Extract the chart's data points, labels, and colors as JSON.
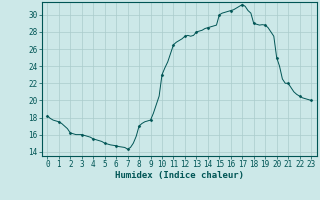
{
  "xlabel": "Humidex (Indice chaleur)",
  "ylabel": "",
  "background_color": "#cce8e8",
  "plot_bg_color": "#cce8e8",
  "grid_color": "#aacccc",
  "line_color": "#005555",
  "marker_color": "#005555",
  "xlim": [
    -0.5,
    23.5
  ],
  "ylim": [
    13.5,
    31.5
  ],
  "yticks": [
    14,
    16,
    18,
    20,
    22,
    24,
    26,
    28,
    30
  ],
  "xticks": [
    0,
    1,
    2,
    3,
    4,
    5,
    6,
    7,
    8,
    9,
    10,
    11,
    12,
    13,
    14,
    15,
    16,
    17,
    18,
    19,
    20,
    21,
    22,
    23
  ],
  "x": [
    0,
    0.25,
    0.5,
    0.75,
    1,
    1.25,
    1.5,
    1.75,
    2,
    2.25,
    2.5,
    2.75,
    3,
    3.25,
    3.5,
    3.75,
    4,
    4.25,
    4.5,
    4.75,
    5,
    5.25,
    5.5,
    5.75,
    6,
    6.25,
    6.5,
    6.75,
    7,
    7.25,
    7.5,
    7.75,
    8,
    8.25,
    8.5,
    8.75,
    9,
    9.25,
    9.5,
    9.75,
    10,
    10.25,
    10.5,
    10.75,
    11,
    11.25,
    11.5,
    11.75,
    12,
    12.25,
    12.5,
    12.75,
    13,
    13.25,
    13.5,
    13.75,
    14,
    14.25,
    14.5,
    14.75,
    15,
    15.25,
    15.5,
    15.75,
    16,
    16.25,
    16.5,
    16.75,
    17,
    17.25,
    17.5,
    17.75,
    18,
    18.25,
    18.5,
    18.75,
    19,
    19.25,
    19.5,
    19.75,
    20,
    20.25,
    20.5,
    20.75,
    21,
    21.25,
    21.5,
    21.75,
    22,
    22.25,
    22.5,
    22.75,
    23
  ],
  "y": [
    18.2,
    17.9,
    17.7,
    17.6,
    17.5,
    17.3,
    17.0,
    16.7,
    16.2,
    16.1,
    16.0,
    16.0,
    16.0,
    15.9,
    15.8,
    15.7,
    15.5,
    15.4,
    15.3,
    15.2,
    15.0,
    14.9,
    14.8,
    14.75,
    14.7,
    14.6,
    14.55,
    14.5,
    14.3,
    14.5,
    15.0,
    15.8,
    17.0,
    17.3,
    17.5,
    17.6,
    17.7,
    18.5,
    19.5,
    20.5,
    23.0,
    23.8,
    24.5,
    25.5,
    26.5,
    26.8,
    27.0,
    27.2,
    27.5,
    27.6,
    27.5,
    27.6,
    28.0,
    28.1,
    28.2,
    28.4,
    28.5,
    28.6,
    28.7,
    28.8,
    30.0,
    30.2,
    30.3,
    30.4,
    30.5,
    30.6,
    30.8,
    31.0,
    31.2,
    31.0,
    30.5,
    30.2,
    29.0,
    28.9,
    28.8,
    28.85,
    28.8,
    28.5,
    28.0,
    27.5,
    25.0,
    24.0,
    22.5,
    22.0,
    22.0,
    21.5,
    21.0,
    20.7,
    20.5,
    20.3,
    20.2,
    20.1,
    20.0
  ],
  "spine_color": "#005555",
  "tick_label_fontsize": 5.5,
  "xlabel_fontsize": 6.5
}
